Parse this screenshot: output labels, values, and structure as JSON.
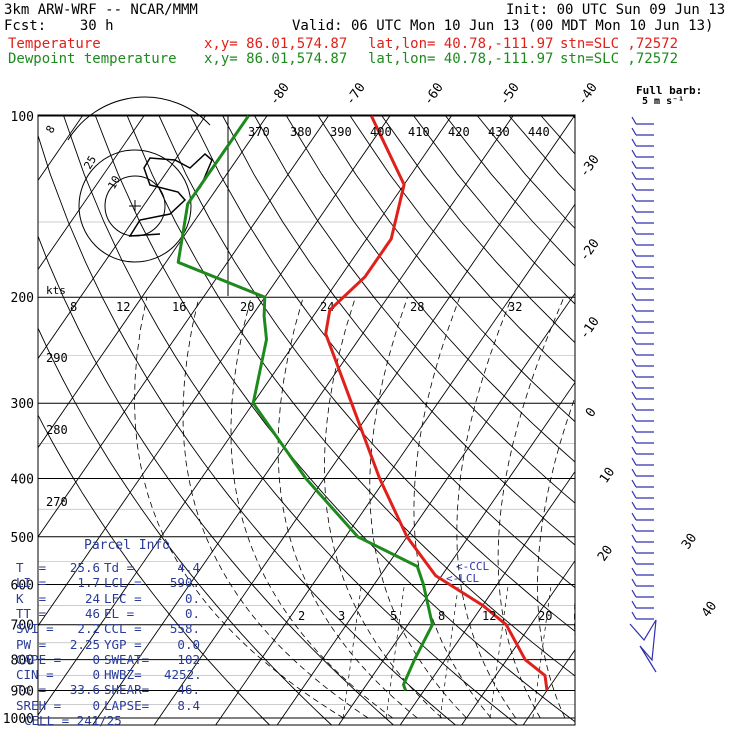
{
  "header": {
    "model": "3km ARW-WRF -- NCAR/MMM",
    "init": "Init: 00 UTC Sun 09 Jun 13",
    "fcst": "Fcst:    30 h",
    "valid": "Valid: 06 UTC Mon 10 Jun 13 (00 MDT Mon 10 Jun 13)",
    "temp_line": {
      "name": "Temperature",
      "xy": "x,y= 86.01,574.87",
      "latlon": "lat,lon= 40.78,-111.97",
      "stn": "stn=SLC ,72572"
    },
    "dew_line": {
      "name": "Dewpoint temperature",
      "xy": "x,y= 86.01,574.87",
      "latlon": "lat,lon= 40.78,-111.97",
      "stn": "stn=SLC ,72572"
    }
  },
  "colors": {
    "temperature": "#e0201a",
    "dewpoint": "#1e8a1e",
    "panel": "#2a3c9a",
    "barbs": "#3030b0"
  },
  "full_barb": {
    "line1": "Full barb:",
    "line2": "5 m s⁻¹"
  },
  "chart_data": {
    "type": "line",
    "title": "",
    "pressure_levels": [
      100,
      200,
      300,
      400,
      500,
      600,
      700,
      800,
      900,
      1000
    ],
    "pressure_labels": [
      "100",
      "200",
      "300",
      "400",
      "500",
      "600",
      "700",
      "800",
      "900",
      "1000"
    ],
    "isotherm_labels": [
      "-80",
      "-70",
      "-60",
      "-50",
      "-40",
      "-30",
      "-20",
      "-10",
      "0",
      "10",
      "20",
      "30",
      "40"
    ],
    "theta_labels": [
      "370",
      "380",
      "390",
      "400",
      "410",
      "420",
      "430",
      "440"
    ],
    "theta_side_labels": [
      "290",
      "280",
      "270"
    ],
    "mixing_ratio_labels": [
      "2",
      "3",
      "5",
      "8",
      "12",
      "20"
    ],
    "hodograph": {
      "kts_label": "kts",
      "speed_labels": [
        "8",
        "12",
        "16",
        "20",
        "24",
        "28",
        "32"
      ],
      "ring_labels": [
        "8",
        "25",
        "10"
      ]
    },
    "series": [
      {
        "name": "Temperature",
        "values": [
          [
            100,
            -73
          ],
          [
            130,
            -60
          ],
          [
            160,
            -56
          ],
          [
            185,
            -56
          ],
          [
            210,
            -58
          ],
          [
            230,
            -56
          ],
          [
            300,
            -44
          ],
          [
            400,
            -31
          ],
          [
            500,
            -20
          ],
          [
            580,
            -11
          ],
          [
            650,
            0
          ],
          [
            700,
            6
          ],
          [
            800,
            13
          ],
          [
            850,
            18
          ],
          [
            900,
            20
          ]
        ]
      },
      {
        "name": "Dewpoint temperature",
        "values": [
          [
            100,
            -93
          ],
          [
            140,
            -93
          ],
          [
            175,
            -88
          ],
          [
            200,
            -70
          ],
          [
            215,
            -68
          ],
          [
            235,
            -65
          ],
          [
            300,
            -60
          ],
          [
            400,
            -43
          ],
          [
            500,
            -28
          ],
          [
            560,
            -15
          ],
          [
            600,
            -12
          ],
          [
            700,
            -6
          ],
          [
            800,
            -5
          ],
          [
            880,
            -4
          ],
          [
            900,
            -3
          ]
        ]
      }
    ],
    "lcl_labels": [
      "<-CCL",
      "<-LCL"
    ],
    "wind_barbs_note": "profile of barbs on right side"
  },
  "parcel_info": {
    "title": "Parcel Info",
    "rows": [
      [
        "T  =",
        "25.6",
        "Td =",
        "4.4"
      ],
      [
        "LI =",
        "1.7",
        "LCL =",
        "590."
      ],
      [
        "K  =",
        "24",
        "LFC =",
        "0."
      ],
      [
        "TT =",
        "46",
        "EL =",
        "0."
      ],
      [
        "SVI =",
        "2.2",
        "CCL =",
        "558."
      ],
      [
        "PW =",
        "2.25",
        "YGP =",
        "0.0"
      ],
      [
        "CAPE =",
        "0",
        "SWEAT=",
        "102"
      ],
      [
        "CIN =",
        "0",
        "HWBZ=",
        "4252."
      ],
      [
        "Tc =",
        "33.6",
        "SHEAR=",
        "46."
      ],
      [
        "SREH =",
        "0",
        "LAPSE=",
        "8.4"
      ]
    ],
    "cell": "CELL = 241/25"
  }
}
